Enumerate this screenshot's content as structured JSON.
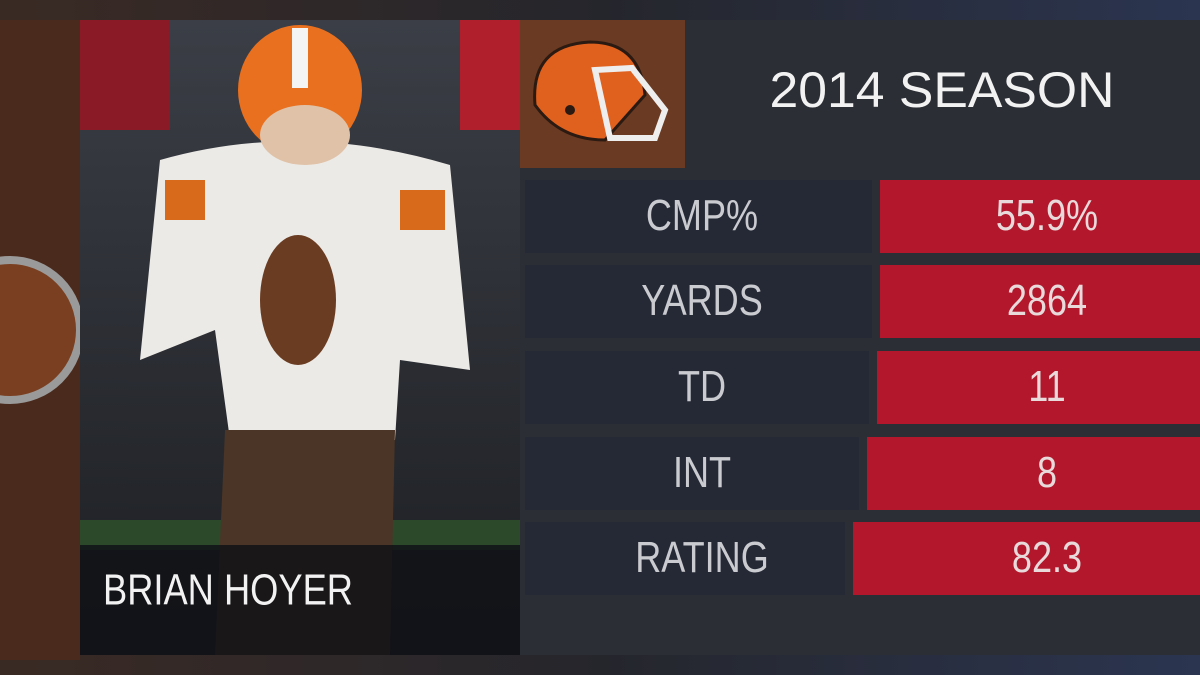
{
  "header": {
    "title": "2014 SEASON"
  },
  "player": {
    "name": "BRIAN HOYER"
  },
  "stats": {
    "rows": [
      {
        "label": "CMP%",
        "value": "55.9%"
      },
      {
        "label": "YARDS",
        "value": "2864"
      },
      {
        "label": "TD",
        "value": "11"
      },
      {
        "label": "INT",
        "value": "8"
      },
      {
        "label": "RATING",
        "value": "82.3"
      }
    ]
  }
}
